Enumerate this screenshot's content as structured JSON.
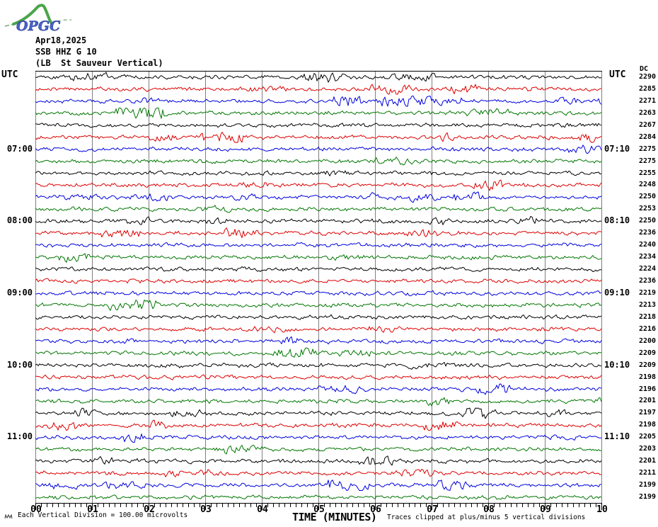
{
  "logo": {
    "text": "OPGC"
  },
  "header": {
    "date": "Apr18,2025",
    "station": "SSB HHZ G 10",
    "location": "(LB  St Sauveur Vertical)"
  },
  "axis_labels": {
    "utc_left": "UTC",
    "utc_right": "UTC",
    "dc_header": "DC"
  },
  "footer": {
    "scale_note": "Each Vertical Division =  100.00 microvolts",
    "xaxis_title": "TIME (MINUTES)",
    "clip_note": "Traces clipped at plus/minus 5 vertical divisions"
  },
  "chart_data": {
    "type": "line",
    "subtype": "helicorder-seismogram",
    "title": "SSB HHZ G 10 (LB St Sauveur Vertical) Apr18,2025",
    "xlabel": "TIME (MINUTES)",
    "ylabel": "UTC",
    "x_range_minutes": [
      0,
      10
    ],
    "x_ticks": [
      "00",
      "01",
      "02",
      "03",
      "04",
      "05",
      "06",
      "07",
      "08",
      "09",
      "10"
    ],
    "x_minor_per_major": 10,
    "grid": "vertical-gray-minute-lines",
    "legend_position": "none",
    "clip_divisions": 5,
    "microvolts_per_division": 100.0,
    "noise_amplitude_divisions": 0.3,
    "trace_colors": {
      "black": "#000000",
      "red": "#dd0000",
      "blue": "#0000dd",
      "green": "#007700"
    },
    "grid_color": "#7f7f7f",
    "rows": [
      {
        "start": "06:00",
        "end": "06:10",
        "color": "black",
        "dc": 2290
      },
      {
        "start": "06:10",
        "end": "06:20",
        "color": "red",
        "dc": 2285
      },
      {
        "start": "06:20",
        "end": "06:30",
        "color": "blue",
        "dc": 2271
      },
      {
        "start": "06:30",
        "end": "06:40",
        "color": "green",
        "dc": 2263
      },
      {
        "start": "06:40",
        "end": "06:50",
        "color": "black",
        "dc": 2267
      },
      {
        "start": "06:50",
        "end": "07:00",
        "color": "red",
        "dc": 2284
      },
      {
        "start": "07:00",
        "end": "07:10",
        "color": "blue",
        "dc": 2275,
        "left_label": "07:00",
        "right_label": "07:10"
      },
      {
        "start": "07:10",
        "end": "07:20",
        "color": "green",
        "dc": 2275
      },
      {
        "start": "07:20",
        "end": "07:30",
        "color": "black",
        "dc": 2255
      },
      {
        "start": "07:30",
        "end": "07:40",
        "color": "red",
        "dc": 2248
      },
      {
        "start": "07:40",
        "end": "07:50",
        "color": "blue",
        "dc": 2250
      },
      {
        "start": "07:50",
        "end": "08:00",
        "color": "green",
        "dc": 2253
      },
      {
        "start": "08:00",
        "end": "08:10",
        "color": "black",
        "dc": 2250,
        "left_label": "08:00",
        "right_label": "08:10"
      },
      {
        "start": "08:10",
        "end": "08:20",
        "color": "red",
        "dc": 2236
      },
      {
        "start": "08:20",
        "end": "08:30",
        "color": "blue",
        "dc": 2240
      },
      {
        "start": "08:30",
        "end": "08:40",
        "color": "green",
        "dc": 2234
      },
      {
        "start": "08:40",
        "end": "08:50",
        "color": "black",
        "dc": 2224
      },
      {
        "start": "08:50",
        "end": "09:00",
        "color": "red",
        "dc": 2236
      },
      {
        "start": "09:00",
        "end": "09:10",
        "color": "blue",
        "dc": 2219,
        "left_label": "09:00",
        "right_label": "09:10"
      },
      {
        "start": "09:10",
        "end": "09:20",
        "color": "green",
        "dc": 2213
      },
      {
        "start": "09:20",
        "end": "09:30",
        "color": "black",
        "dc": 2218
      },
      {
        "start": "09:30",
        "end": "09:40",
        "color": "red",
        "dc": 2216
      },
      {
        "start": "09:40",
        "end": "09:50",
        "color": "blue",
        "dc": 2200
      },
      {
        "start": "09:50",
        "end": "10:00",
        "color": "green",
        "dc": 2209
      },
      {
        "start": "10:00",
        "end": "10:10",
        "color": "black",
        "dc": 2209,
        "left_label": "10:00",
        "right_label": "10:10"
      },
      {
        "start": "10:10",
        "end": "10:20",
        "color": "red",
        "dc": 2198
      },
      {
        "start": "10:20",
        "end": "10:30",
        "color": "blue",
        "dc": 2196
      },
      {
        "start": "10:30",
        "end": "10:40",
        "color": "green",
        "dc": 2201
      },
      {
        "start": "10:40",
        "end": "10:50",
        "color": "black",
        "dc": 2197
      },
      {
        "start": "10:50",
        "end": "11:00",
        "color": "red",
        "dc": 2198
      },
      {
        "start": "11:00",
        "end": "11:10",
        "color": "blue",
        "dc": 2205,
        "left_label": "11:00",
        "right_label": "11:10"
      },
      {
        "start": "11:10",
        "end": "11:20",
        "color": "green",
        "dc": 2203
      },
      {
        "start": "11:20",
        "end": "11:30",
        "color": "black",
        "dc": 2201
      },
      {
        "start": "11:30",
        "end": "11:40",
        "color": "red",
        "dc": 2211
      },
      {
        "start": "11:40",
        "end": "11:50",
        "color": "blue",
        "dc": 2199
      },
      {
        "start": "11:50",
        "end": "12:00",
        "color": "green",
        "dc": 2199
      }
    ]
  }
}
